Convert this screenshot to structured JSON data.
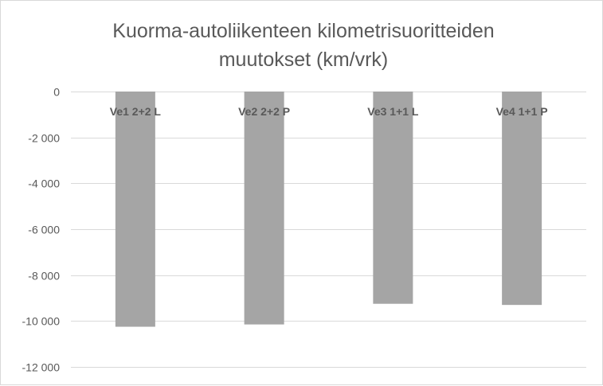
{
  "chart_data": {
    "type": "bar",
    "title_lines": [
      "Kuorma-autoliikenteen kilometrisuoritteiden",
      "muutokset (km/vrk)"
    ],
    "categories": [
      "Ve1 2+2 L",
      "Ve2 2+2 P",
      "Ve3 1+1 L",
      "Ve4 1+1 P"
    ],
    "values": [
      -10250,
      -10150,
      -9250,
      -9300
    ],
    "ylim": [
      -12000,
      0
    ],
    "yticks": [
      0,
      -2000,
      -4000,
      -6000,
      -8000,
      -10000,
      -12000
    ],
    "ytick_labels": [
      "0",
      "-2 000",
      "-4 000",
      "-6 000",
      "-8 000",
      "-10 000",
      "-12 000"
    ],
    "grid": true,
    "legend": "none",
    "colors": {
      "bar": "#a5a5a5",
      "grid": "#d9d9d9",
      "text": "#595959"
    }
  }
}
